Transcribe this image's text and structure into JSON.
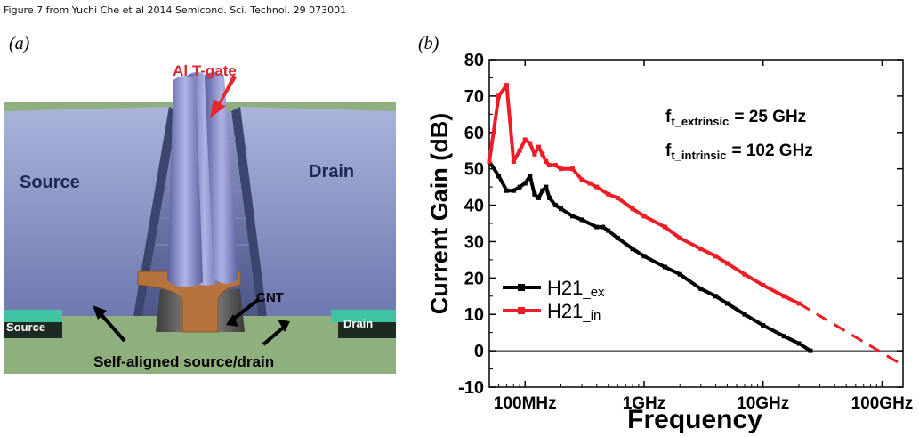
{
  "caption": "Figure 7 from Yuchi Che et al 2014 Semicond. Sci. Technol. 29 073001",
  "panel_a": {
    "label": "(a)",
    "gate_label": "Al T-gate",
    "source_left": "Source",
    "drain_right": "Drain",
    "source_small": "Source",
    "drain_small": "Drain",
    "cnt_label": "CNT",
    "bottom_label": "Self-aligned source/drain"
  },
  "panel_b": {
    "label": "(b)",
    "annotation_ext_main": "f",
    "annotation_ext_sub": "t_extrinsic",
    "annotation_ext_value": "=  25 GHz",
    "annotation_int_main": "f",
    "annotation_int_sub": "t_intrinsic",
    "annotation_int_value": "= 102 GHz"
  },
  "chart_data": {
    "type": "line",
    "xlabel": "Frequency",
    "ylabel": "Current Gain (dB)",
    "x_scale": "log",
    "xlim": [
      0.05,
      150
    ],
    "ylim": [
      -10,
      80
    ],
    "x_ticks": [
      0.1,
      1,
      10,
      100
    ],
    "x_tick_labels": [
      "100MHz",
      "1GHz",
      "10GHz",
      "100GHz"
    ],
    "y_ticks": [
      -10,
      0,
      10,
      20,
      30,
      40,
      50,
      60,
      70,
      80
    ],
    "y_tick_labels": [
      "-10",
      "0",
      "10",
      "20",
      "30",
      "40",
      "50",
      "60",
      "70",
      "80"
    ],
    "legend_position": "bottom-left",
    "series": [
      {
        "name": "H21_ex",
        "color": "#000000",
        "x": [
          0.05,
          0.06,
          0.07,
          0.08,
          0.09,
          0.1,
          0.11,
          0.12,
          0.13,
          0.14,
          0.15,
          0.16,
          0.18,
          0.2,
          0.25,
          0.3,
          0.4,
          0.45,
          0.5,
          0.6,
          0.8,
          1,
          1.5,
          2,
          3,
          4,
          5,
          7,
          10,
          15,
          20,
          25
        ],
        "y": [
          52,
          48,
          44,
          44,
          45,
          46,
          48,
          43,
          42,
          44,
          45,
          42,
          40,
          39,
          37,
          36,
          34,
          34,
          33,
          31,
          28,
          26,
          23,
          21,
          17,
          15,
          13,
          10,
          7,
          4,
          2,
          0
        ]
      },
      {
        "name": "H21_in",
        "color": "#ee1c25",
        "x": [
          0.05,
          0.06,
          0.07,
          0.08,
          0.09,
          0.1,
          0.11,
          0.12,
          0.13,
          0.14,
          0.15,
          0.16,
          0.18,
          0.2,
          0.25,
          0.3,
          0.35,
          0.4,
          0.5,
          0.6,
          0.8,
          1,
          1.5,
          2,
          3,
          4,
          5,
          7,
          10,
          15,
          20
        ],
        "y": [
          52,
          70,
          73,
          52,
          55,
          58,
          57,
          54,
          56,
          54,
          52,
          51,
          51,
          50,
          50,
          47,
          46,
          45,
          43,
          42,
          39,
          37,
          34,
          31,
          28,
          26,
          24,
          21,
          18,
          15,
          13
        ]
      }
    ],
    "extrapolation": {
      "series": "H21_in",
      "style": "dashed",
      "x": [
        20,
        150
      ],
      "y": [
        13,
        -4
      ]
    },
    "zero_line": true
  }
}
